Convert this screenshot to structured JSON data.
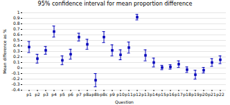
{
  "chart_data": {
    "type": "errorbar",
    "title": "95% confidence interval for mean proportion difference",
    "xlabel": "Question",
    "ylabel": "Mean difference as %",
    "categories": [
      "p1",
      "p2",
      "p3",
      "p4",
      "p5",
      "p6",
      "p7",
      "p8a",
      "p8b",
      "p8c",
      "p9",
      "p10",
      "p11",
      "p12",
      "p13",
      "p14",
      "p15",
      "p16",
      "p17",
      "p18",
      "p19",
      "p20",
      "p21",
      "p22"
    ],
    "values": [
      0.38,
      0.17,
      0.32,
      0.66,
      0.14,
      0.25,
      0.56,
      0.43,
      -0.22,
      0.56,
      0.32,
      0.24,
      0.37,
      0.92,
      0.23,
      0.1,
      0.01,
      0.02,
      0.07,
      -0.03,
      -0.12,
      -0.04,
      0.1,
      0.15
    ],
    "lower_err": [
      0.1,
      0.08,
      0.07,
      0.1,
      0.08,
      0.09,
      0.07,
      0.09,
      0.12,
      0.1,
      0.1,
      0.09,
      0.1,
      0.05,
      0.1,
      0.08,
      0.04,
      0.04,
      0.06,
      0.05,
      0.08,
      0.05,
      0.07,
      0.07
    ],
    "upper_err": [
      0.1,
      0.08,
      0.07,
      0.1,
      0.08,
      0.09,
      0.07,
      0.09,
      0.12,
      0.1,
      0.1,
      0.09,
      0.1,
      0.05,
      0.1,
      0.08,
      0.04,
      0.04,
      0.06,
      0.05,
      0.08,
      0.05,
      0.07,
      0.07
    ],
    "color": "#0000bb",
    "marker": "square",
    "grid": true,
    "ylim": [
      -0.4,
      1.0
    ],
    "yticks": [
      -0.4,
      -0.3,
      -0.2,
      -0.1,
      0.0,
      0.1,
      0.2,
      0.3,
      0.4,
      0.5,
      0.6,
      0.7,
      0.8,
      0.9,
      1.0
    ]
  }
}
